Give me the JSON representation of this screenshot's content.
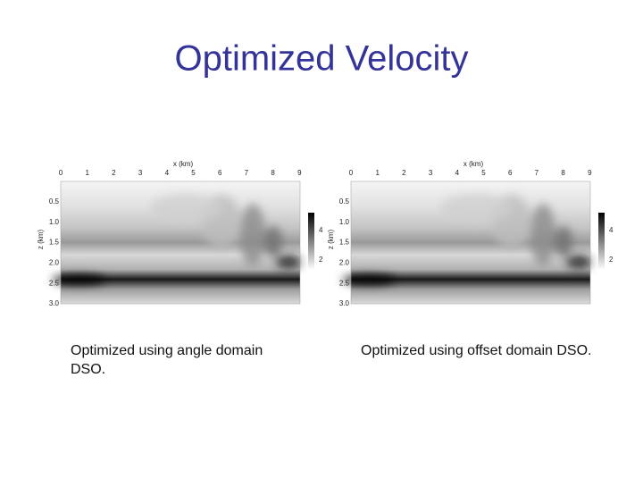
{
  "header": {
    "title": "Optimized Velocity"
  },
  "panels": [
    {
      "x_label": "x (km)",
      "z_label": "z (km)",
      "x_ticks": [
        "0",
        "1",
        "2",
        "3",
        "4",
        "5",
        "6",
        "7",
        "8",
        "9"
      ],
      "z_ticks": [
        "0.5",
        "1.0",
        "1.5",
        "2.0",
        "2.5",
        "3.0"
      ],
      "colorbar_ticks": [
        "4",
        "2"
      ],
      "caption": [
        "Optimized using angle domain",
        "DSO."
      ]
    },
    {
      "x_label": "x (km)",
      "z_label": "z (km)",
      "x_ticks": [
        "0",
        "1",
        "2",
        "3",
        "4",
        "5",
        "6",
        "7",
        "8",
        "9"
      ],
      "z_ticks": [
        "0.5",
        "1.0",
        "1.5",
        "2.0",
        "2.5",
        "3.0"
      ],
      "colorbar_ticks": [
        "4",
        "2"
      ],
      "caption": [
        "Optimized using offset domain DSO."
      ]
    }
  ]
}
